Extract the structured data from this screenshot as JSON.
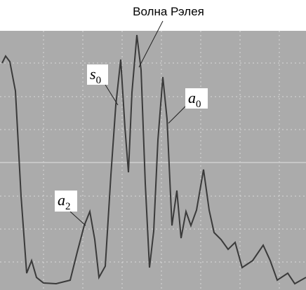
{
  "title": "Волна Рэлея",
  "labels": [
    {
      "letter": "s",
      "sub": "0"
    },
    {
      "letter": "a",
      "sub": "0"
    },
    {
      "letter": "a",
      "sub": "2"
    }
  ]
}
